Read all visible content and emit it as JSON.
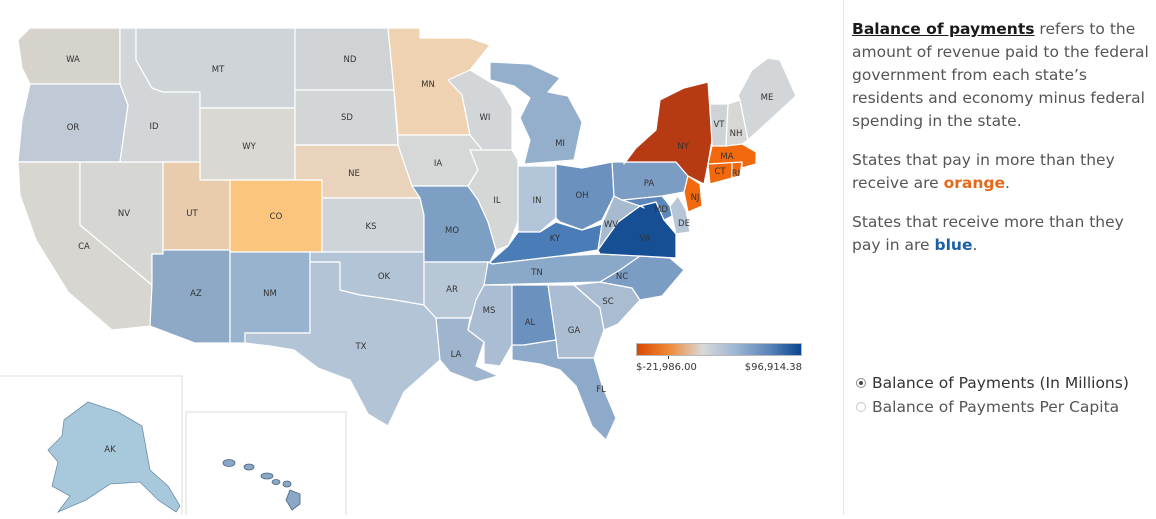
{
  "colors": {
    "wa": "#d6d3cc",
    "or": "#c0c9d6",
    "ca": "#d8d6d0",
    "nv": "#d6d6d2",
    "id": "#d3d6d9",
    "mt": "#cfd4d8",
    "wy": "#d9d8d2",
    "ut": "#e8ccad",
    "co": "#fbc57e",
    "az": "#8da9c6",
    "nm": "#98b3cd",
    "nd": "#d0d3d6",
    "sd": "#d3d6d7",
    "ne": "#ead3bd",
    "ks": "#cfd4d8",
    "ok": "#b3c4d6",
    "tx": "#b3c4d6",
    "mn": "#efd2b1",
    "ia": "#d6d8d8",
    "mo": "#7e9fc4",
    "ar": "#b8c7d6",
    "la": "#9eb5cd",
    "wi": "#d3d6d9",
    "il": "#d5d6d6",
    "mi": "#93afcc",
    "in": "#b3c5d8",
    "oh": "#6b91bf",
    "ky": "#4a7cb7",
    "tn": "#8aa9c9",
    "ms": "#aabdd2",
    "al": "#6b91bf",
    "ga": "#aabdd2",
    "fl": "#8eaacb",
    "sc": "#a9bcd2",
    "nc": "#7b9cc3",
    "va": "#174f95",
    "wv": "#a7bbd0",
    "md": "#5d87ba",
    "de": "#b7c6d6",
    "pa": "#7b9cc3",
    "ny": "#b63a12",
    "nj": "#f2680d",
    "ct": "#f2680d",
    "ri": "#f2680d",
    "ma": "#f2680d",
    "vt": "#d0d3d6",
    "nh": "#d7d8d6",
    "me": "#d3d6d9",
    "ak": "#a8c8dc",
    "hi": "#8aa8c6"
  },
  "state_labels": {
    "wa": "WA",
    "or": "OR",
    "ca": "CA",
    "nv": "NV",
    "id": "ID",
    "mt": "MT",
    "wy": "WY",
    "ut": "UT",
    "co": "CO",
    "az": "AZ",
    "nm": "NM",
    "nd": "ND",
    "sd": "SD",
    "ne": "NE",
    "ks": "KS",
    "ok": "OK",
    "tx": "TX",
    "mn": "MN",
    "ia": "IA",
    "mo": "MO",
    "ar": "AR",
    "la": "LA",
    "wi": "WI",
    "il": "IL",
    "mi": "MI",
    "in": "IN",
    "oh": "OH",
    "ky": "KY",
    "tn": "TN",
    "ms": "MS",
    "al": "AL",
    "ga": "GA",
    "fl": "FL",
    "sc": "SC",
    "nc": "NC",
    "va": "VA",
    "wv": "WV",
    "md": "MD",
    "de": "DE",
    "pa": "PA",
    "ny": "NY",
    "nj": "NJ",
    "ct": "CT",
    "ri": "RI",
    "ma": "MA",
    "vt": "VT",
    "nh": "NH",
    "me": "ME",
    "ak": "AK"
  },
  "legend": {
    "min_label": "$-21,986.00",
    "max_label": "$96,914.38",
    "gradient": [
      "#d84a00",
      "#f08a3a",
      "#d9d9d9",
      "#9db6d3",
      "#5c86ba",
      "#0b4690"
    ]
  },
  "description": {
    "term": "Balance of payments",
    "p1_rest": "refers to the amount of revenue paid to the federal government from each state’s residents and economy minus federal spending in the state.",
    "p2_pre": "States that pay in more than they receive are",
    "p2_hl": "orange",
    "p2_post": ".",
    "p3_pre": "States that receive more than they pay in are",
    "p3_hl": "blue",
    "p3_post": ".",
    "orange_color": "#e8681a",
    "blue_color": "#1d5fa6"
  },
  "options": {
    "selected": "Balance of Payments (In Millions)",
    "other": "Balance of Payments Per Capita"
  }
}
